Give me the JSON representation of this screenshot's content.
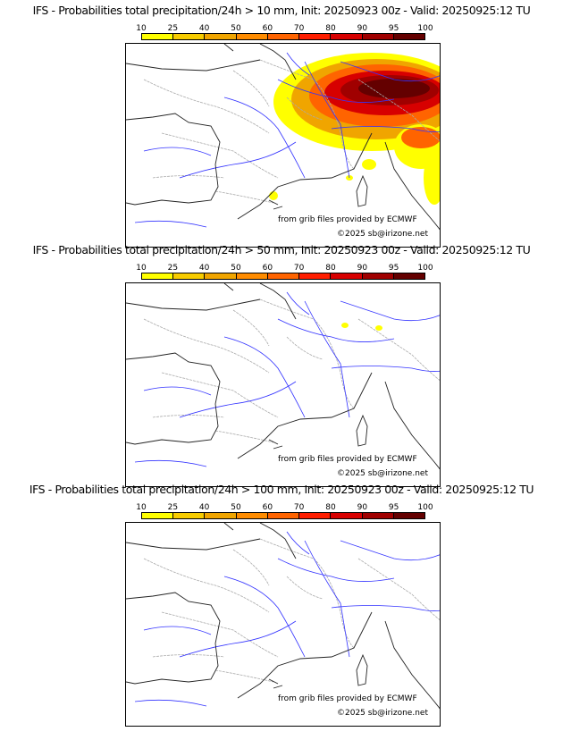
{
  "panels": [
    {
      "title": "IFS - Probabilities total precipitation/24h > 10 mm, Init: 20250923 00z - Valid: 20250925:12 TU",
      "field": "heavy"
    },
    {
      "title": "IFS - Probabilities total precipitation/24h > 50 mm, Init: 20250923 00z - Valid: 20250925:12 TU",
      "field": "light"
    },
    {
      "title": "IFS - Probabilities total precipitation/24h > 100 mm, Init: 20250923 00z - Valid: 20250925:12 TU",
      "field": "none"
    }
  ],
  "colorbar": {
    "ticks": [
      "10",
      "25",
      "40",
      "50",
      "60",
      "70",
      "80",
      "90",
      "95",
      "100"
    ],
    "colors": [
      "#ffff00",
      "#f7cc00",
      "#f0a500",
      "#ff8c00",
      "#ff6400",
      "#ff1e00",
      "#d70000",
      "#a00000",
      "#640000"
    ]
  },
  "credits": {
    "source": "from grib files provided by ECMWF",
    "copyright": "©2025 sb@irizone.net"
  }
}
